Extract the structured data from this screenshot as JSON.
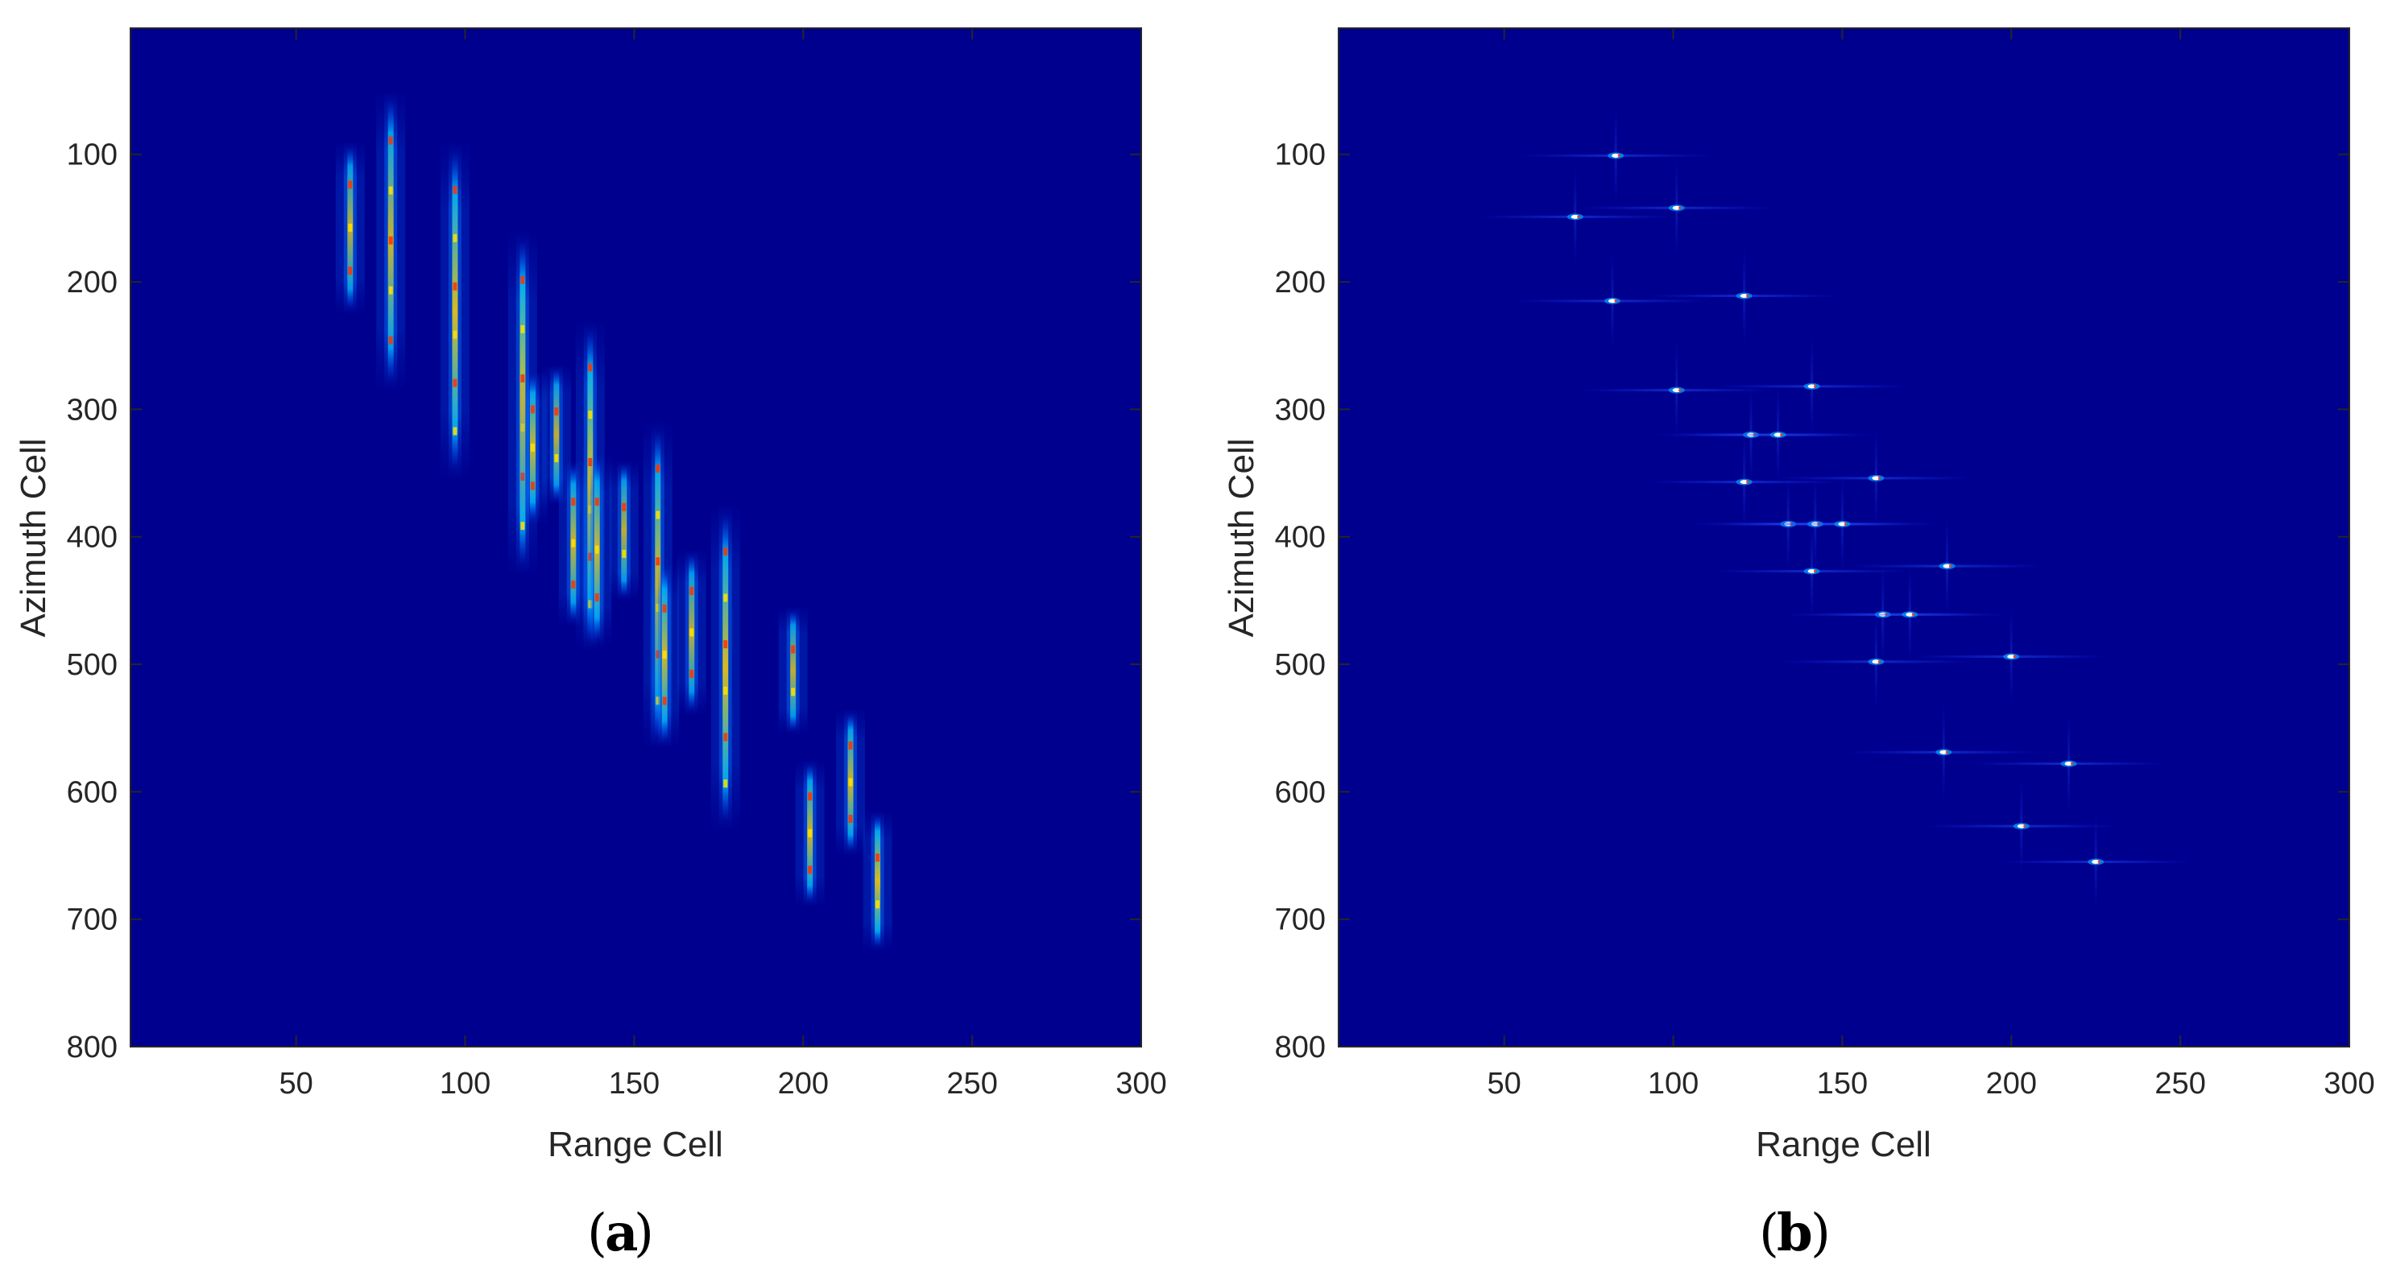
{
  "colors": {
    "background": "#00008f",
    "colormap": [
      "#00008f",
      "#0000ff",
      "#0080ff",
      "#00ffff",
      "#80ff80",
      "#ffff00",
      "#ff8000",
      "#ff0000",
      "#800000"
    ],
    "axis": "#262626"
  },
  "chart_data": [
    {
      "type": "heatmap",
      "panel": "(a)",
      "caption_letter": "a",
      "xlabel": "Range Cell",
      "ylabel": "Azimuth  Cell",
      "xlim": [
        1,
        300
      ],
      "ylim": [
        800,
        1
      ],
      "y_reversed": true,
      "xticks": [
        50,
        100,
        150,
        200,
        250,
        300
      ],
      "yticks": [
        100,
        200,
        300,
        400,
        500,
        600,
        700,
        800
      ],
      "grid": false,
      "description_kind": "streaks",
      "streaks": [
        {
          "x": 66,
          "y1": 90,
          "y2": 225,
          "peak": 0.75
        },
        {
          "x": 78,
          "y1": 50,
          "y2": 285,
          "peak": 0.8
        },
        {
          "x": 97,
          "y1": 90,
          "y2": 355,
          "peak": 0.85
        },
        {
          "x": 117,
          "y1": 160,
          "y2": 430,
          "peak": 0.9
        },
        {
          "x": 120,
          "y1": 270,
          "y2": 390,
          "peak": 0.8
        },
        {
          "x": 127,
          "y1": 265,
          "y2": 375,
          "peak": 0.75
        },
        {
          "x": 132,
          "y1": 340,
          "y2": 470,
          "peak": 0.8
        },
        {
          "x": 137,
          "y1": 230,
          "y2": 490,
          "peak": 0.9
        },
        {
          "x": 139,
          "y1": 335,
          "y2": 485,
          "peak": 0.8
        },
        {
          "x": 147,
          "y1": 340,
          "y2": 450,
          "peak": 0.75
        },
        {
          "x": 157,
          "y1": 310,
          "y2": 565,
          "peak": 0.85
        },
        {
          "x": 159,
          "y1": 420,
          "y2": 565,
          "peak": 0.8
        },
        {
          "x": 167,
          "y1": 410,
          "y2": 540,
          "peak": 0.75
        },
        {
          "x": 177,
          "y1": 375,
          "y2": 630,
          "peak": 0.85
        },
        {
          "x": 197,
          "y1": 455,
          "y2": 555,
          "peak": 0.75
        },
        {
          "x": 202,
          "y1": 575,
          "y2": 690,
          "peak": 0.8
        },
        {
          "x": 214,
          "y1": 535,
          "y2": 650,
          "peak": 0.8
        },
        {
          "x": 222,
          "y1": 615,
          "y2": 725,
          "peak": 0.85
        }
      ]
    },
    {
      "type": "heatmap",
      "panel": "(b)",
      "caption_letter": "b",
      "xlabel": "Range Cell",
      "ylabel": "Azimuth  Cell",
      "xlim": [
        1,
        300
      ],
      "ylim": [
        800,
        1
      ],
      "y_reversed": true,
      "xticks": [
        50,
        100,
        150,
        200,
        250,
        300
      ],
      "yticks": [
        100,
        200,
        300,
        400,
        500,
        600,
        700,
        800
      ],
      "grid": false,
      "description_kind": "points",
      "points": [
        {
          "x": 83,
          "y": 101
        },
        {
          "x": 101,
          "y": 142
        },
        {
          "x": 71,
          "y": 149
        },
        {
          "x": 121,
          "y": 211
        },
        {
          "x": 82,
          "y": 215
        },
        {
          "x": 141,
          "y": 282
        },
        {
          "x": 101,
          "y": 285
        },
        {
          "x": 123,
          "y": 320
        },
        {
          "x": 131,
          "y": 320
        },
        {
          "x": 160,
          "y": 354
        },
        {
          "x": 121,
          "y": 357
        },
        {
          "x": 134,
          "y": 390
        },
        {
          "x": 142,
          "y": 390
        },
        {
          "x": 150,
          "y": 390
        },
        {
          "x": 181,
          "y": 423
        },
        {
          "x": 141,
          "y": 427
        },
        {
          "x": 162,
          "y": 461
        },
        {
          "x": 170,
          "y": 461
        },
        {
          "x": 200,
          "y": 494
        },
        {
          "x": 160,
          "y": 498
        },
        {
          "x": 180,
          "y": 569
        },
        {
          "x": 217,
          "y": 578
        },
        {
          "x": 203,
          "y": 627
        },
        {
          "x": 225,
          "y": 655
        }
      ]
    }
  ]
}
